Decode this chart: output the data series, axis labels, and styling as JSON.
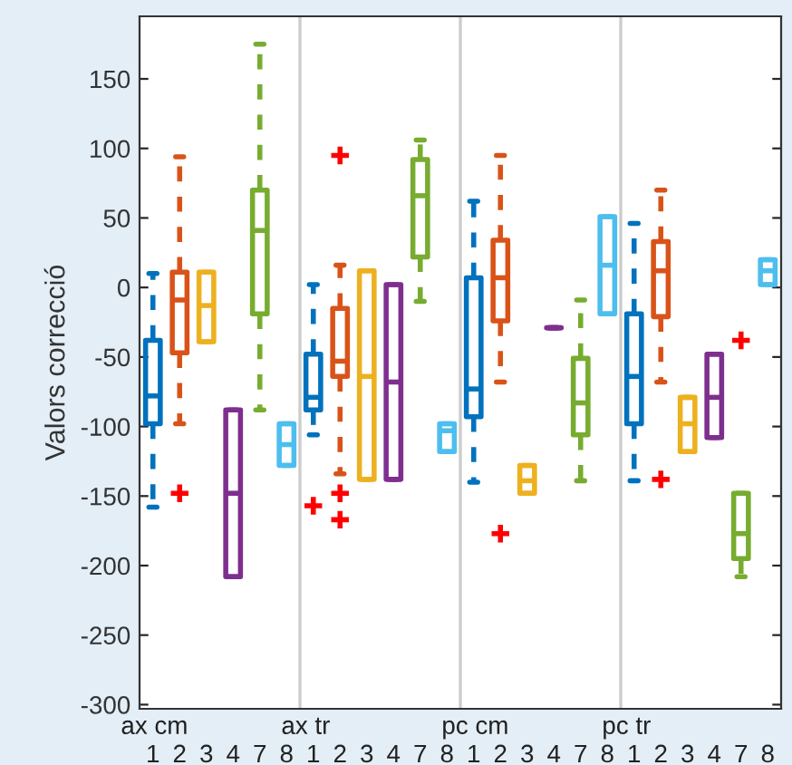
{
  "chart_data": {
    "type": "box",
    "ylabel": "Valors correcció",
    "categories": [
      "1",
      "2",
      "3",
      "4",
      "7",
      "8",
      "1",
      "2",
      "3",
      "4",
      "7",
      "8",
      "1",
      "2",
      "3",
      "4",
      "7",
      "8",
      "1",
      "2",
      "3",
      "4",
      "7",
      "8"
    ],
    "annotations": [
      "ax cm",
      "ax tr",
      "pc cm",
      "pc tr"
    ],
    "ylim": [
      -303,
      195
    ],
    "yticks": [
      -300,
      -250,
      -200,
      -150,
      -100,
      -50,
      0,
      50,
      100,
      150
    ],
    "colors": [
      "#0072bd",
      "#d95319",
      "#edb120",
      "#7e2f8e",
      "#77ac30",
      "#4dbeee",
      "#0072bd",
      "#d95319",
      "#edb120",
      "#7e2f8e",
      "#77ac30",
      "#4dbeee",
      "#0072bd",
      "#d95319",
      "#edb120",
      "#7e2f8e",
      "#77ac30",
      "#4dbeee",
      "#0072bd",
      "#d95319",
      "#edb120",
      "#7e2f8e",
      "#77ac30",
      "#4dbeee"
    ],
    "boxes": [
      {
        "low": -158,
        "q1": -98,
        "median": -78,
        "q3": -38,
        "high": 10
      },
      {
        "low": -98,
        "q1": -47,
        "median": -9,
        "q3": 11,
        "high": 94,
        "outliers": [
          -148
        ]
      },
      {
        "low": -39,
        "q1": -39,
        "median": -13,
        "q3": 11,
        "high": 11
      },
      {
        "low": -208,
        "q1": -208,
        "median": -148,
        "q3": -88,
        "high": -88
      },
      {
        "low": -88,
        "q1": -19,
        "median": 41,
        "q3": 70,
        "high": 175
      },
      {
        "low": -128,
        "q1": -128,
        "median": -113,
        "q3": -98,
        "high": -98
      },
      {
        "low": -106,
        "q1": -88,
        "median": -79,
        "q3": -48,
        "high": 2,
        "outliers": [
          -157
        ]
      },
      {
        "low": -134,
        "q1": -64,
        "median": -53,
        "q3": -15,
        "high": 16,
        "outliers": [
          95,
          -148,
          -167
        ]
      },
      {
        "low": -138,
        "q1": -138,
        "median": -64,
        "q3": 12,
        "high": 12
      },
      {
        "low": -138,
        "q1": -138,
        "median": -68,
        "q3": 2,
        "high": 2
      },
      {
        "low": -10,
        "q1": 22,
        "median": 66,
        "q3": 92,
        "high": 106
      },
      {
        "low": -118,
        "q1": -118,
        "median": -103,
        "q3": -98,
        "high": -98
      },
      {
        "low": -140,
        "q1": -93,
        "median": -73,
        "q3": 7,
        "high": 62
      },
      {
        "low": -68,
        "q1": -24,
        "median": 7,
        "q3": 34,
        "high": 95,
        "outliers": [
          -177
        ]
      },
      {
        "low": -148,
        "q1": -148,
        "median": -139,
        "q3": -128,
        "high": -128
      },
      {
        "low": -29,
        "q1": -29,
        "median": -29,
        "q3": -29,
        "high": -29
      },
      {
        "low": -139,
        "q1": -106,
        "median": -83,
        "q3": -51,
        "high": -9
      },
      {
        "low": -19,
        "q1": -19,
        "median": 16,
        "q3": 51,
        "high": 51
      },
      {
        "low": -139,
        "q1": -98,
        "median": -64,
        "q3": -19,
        "high": 46
      },
      {
        "low": -68,
        "q1": -21,
        "median": 12,
        "q3": 33,
        "high": 70,
        "outliers": [
          -138
        ]
      },
      {
        "low": -118,
        "q1": -118,
        "median": -98,
        "q3": -79,
        "high": -79
      },
      {
        "low": -108,
        "q1": -108,
        "median": -79,
        "q3": -48,
        "high": -48
      },
      {
        "low": -208,
        "q1": -195,
        "median": -177,
        "q3": -148,
        "high": -148,
        "outliers": [
          -38
        ]
      },
      {
        "low": 2,
        "q1": 2,
        "median": 12,
        "q3": 20,
        "high": 20
      }
    ]
  }
}
